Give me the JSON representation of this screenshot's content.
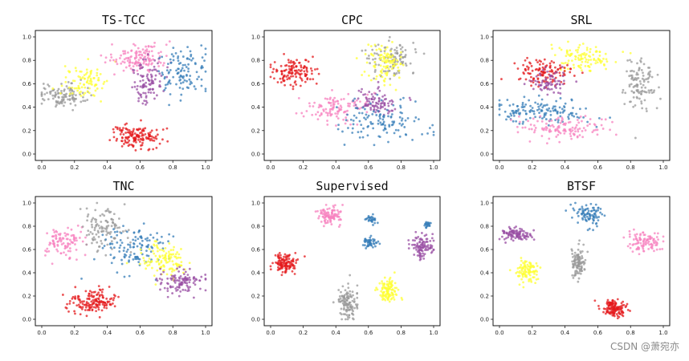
{
  "figure": {
    "watermark": "CSDN @萧宛亦"
  },
  "colors": {
    "red": "#e41a1c",
    "blue": "#377eb8",
    "purple": "#984ea3",
    "yellow": "#ffff33",
    "pink": "#f781bf",
    "gray": "#999999"
  },
  "chart_data": [
    {
      "type": "scatter",
      "title": "TS-TCC",
      "xlim": [
        0,
        1
      ],
      "ylim": [
        0,
        1
      ],
      "xticks": [
        "0.0",
        "0.2",
        "0.4",
        "0.6",
        "0.8",
        "1.0"
      ],
      "yticks": [
        "0.0",
        "0.2",
        "0.4",
        "0.6",
        "0.8",
        "1.0"
      ],
      "clusters": [
        {
          "color": "gray",
          "cx": 0.12,
          "cy": 0.5,
          "sx": 0.07,
          "sy": 0.05,
          "n": 110
        },
        {
          "color": "yellow",
          "cx": 0.26,
          "cy": 0.62,
          "sx": 0.07,
          "sy": 0.07,
          "n": 90
        },
        {
          "color": "pink",
          "cx": 0.6,
          "cy": 0.82,
          "sx": 0.09,
          "sy": 0.06,
          "n": 130
        },
        {
          "color": "purple",
          "cx": 0.64,
          "cy": 0.62,
          "sx": 0.05,
          "sy": 0.09,
          "n": 100
        },
        {
          "color": "blue",
          "cx": 0.86,
          "cy": 0.72,
          "sx": 0.07,
          "sy": 0.1,
          "n": 110
        },
        {
          "color": "red",
          "cx": 0.57,
          "cy": 0.15,
          "sx": 0.08,
          "sy": 0.05,
          "n": 150
        }
      ]
    },
    {
      "type": "scatter",
      "title": "CPC",
      "xlim": [
        0,
        1
      ],
      "ylim": [
        0,
        1
      ],
      "xticks": [
        "0.0",
        "0.2",
        "0.4",
        "0.6",
        "0.8",
        "1.0"
      ],
      "yticks": [
        "0.0",
        "0.2",
        "0.4",
        "0.6",
        "0.8",
        "1.0"
      ],
      "clusters": [
        {
          "color": "red",
          "cx": 0.15,
          "cy": 0.7,
          "sx": 0.07,
          "sy": 0.06,
          "n": 130
        },
        {
          "color": "gray",
          "cx": 0.74,
          "cy": 0.82,
          "sx": 0.08,
          "sy": 0.07,
          "n": 110
        },
        {
          "color": "yellow",
          "cx": 0.7,
          "cy": 0.78,
          "sx": 0.06,
          "sy": 0.08,
          "n": 100
        },
        {
          "color": "pink",
          "cx": 0.4,
          "cy": 0.4,
          "sx": 0.1,
          "sy": 0.06,
          "n": 110
        },
        {
          "color": "purple",
          "cx": 0.66,
          "cy": 0.42,
          "sx": 0.07,
          "sy": 0.06,
          "n": 90
        },
        {
          "color": "blue",
          "cx": 0.68,
          "cy": 0.28,
          "sx": 0.14,
          "sy": 0.09,
          "n": 120
        }
      ]
    },
    {
      "type": "scatter",
      "title": "SRL",
      "xlim": [
        0,
        1
      ],
      "ylim": [
        0,
        1
      ],
      "xticks": [
        "0.0",
        "0.2",
        "0.4",
        "0.6",
        "0.8",
        "1.0"
      ],
      "yticks": [
        "0.0",
        "0.2",
        "0.4",
        "0.6",
        "0.8",
        "1.0"
      ],
      "clusters": [
        {
          "color": "yellow",
          "cx": 0.53,
          "cy": 0.82,
          "sx": 0.09,
          "sy": 0.06,
          "n": 110
        },
        {
          "color": "red",
          "cx": 0.27,
          "cy": 0.7,
          "sx": 0.09,
          "sy": 0.06,
          "n": 120
        },
        {
          "color": "purple",
          "cx": 0.3,
          "cy": 0.63,
          "sx": 0.06,
          "sy": 0.05,
          "n": 70
        },
        {
          "color": "gray",
          "cx": 0.86,
          "cy": 0.58,
          "sx": 0.05,
          "sy": 0.11,
          "n": 110
        },
        {
          "color": "blue",
          "cx": 0.26,
          "cy": 0.36,
          "sx": 0.15,
          "sy": 0.05,
          "n": 140
        },
        {
          "color": "pink",
          "cx": 0.37,
          "cy": 0.22,
          "sx": 0.13,
          "sy": 0.05,
          "n": 120
        }
      ]
    },
    {
      "type": "scatter",
      "title": "TNC",
      "xlim": [
        0,
        1
      ],
      "ylim": [
        0,
        1
      ],
      "xticks": [
        "0.0",
        "0.2",
        "0.4",
        "0.6",
        "0.8",
        "1.0"
      ],
      "yticks": [
        "0.0",
        "0.2",
        "0.4",
        "0.6",
        "0.8",
        "1.0"
      ],
      "clusters": [
        {
          "color": "pink",
          "cx": 0.13,
          "cy": 0.65,
          "sx": 0.06,
          "sy": 0.07,
          "n": 100
        },
        {
          "color": "gray",
          "cx": 0.38,
          "cy": 0.78,
          "sx": 0.07,
          "sy": 0.1,
          "n": 110
        },
        {
          "color": "blue",
          "cx": 0.56,
          "cy": 0.62,
          "sx": 0.1,
          "sy": 0.1,
          "n": 120
        },
        {
          "color": "yellow",
          "cx": 0.75,
          "cy": 0.5,
          "sx": 0.07,
          "sy": 0.07,
          "n": 120
        },
        {
          "color": "purple",
          "cx": 0.85,
          "cy": 0.32,
          "sx": 0.07,
          "sy": 0.05,
          "n": 110
        },
        {
          "color": "red",
          "cx": 0.31,
          "cy": 0.15,
          "sx": 0.08,
          "sy": 0.05,
          "n": 150
        }
      ]
    },
    {
      "type": "scatter",
      "title": "Supervised",
      "xlim": [
        0,
        1
      ],
      "ylim": [
        0,
        1
      ],
      "xticks": [
        "0.0",
        "0.2",
        "0.4",
        "0.6",
        "0.8",
        "1.0"
      ],
      "yticks": [
        "0.0",
        "0.2",
        "0.4",
        "0.6",
        "0.8",
        "1.0"
      ],
      "clusters": [
        {
          "color": "pink",
          "cx": 0.37,
          "cy": 0.9,
          "sx": 0.04,
          "sy": 0.04,
          "n": 100
        },
        {
          "color": "blue",
          "cx": 0.62,
          "cy": 0.86,
          "sx": 0.015,
          "sy": 0.02,
          "n": 30
        },
        {
          "color": "blue",
          "cx": 0.61,
          "cy": 0.66,
          "sx": 0.025,
          "sy": 0.025,
          "n": 50
        },
        {
          "color": "blue",
          "cx": 0.96,
          "cy": 0.81,
          "sx": 0.01,
          "sy": 0.015,
          "n": 20
        },
        {
          "color": "purple",
          "cx": 0.93,
          "cy": 0.62,
          "sx": 0.035,
          "sy": 0.05,
          "n": 100
        },
        {
          "color": "red",
          "cx": 0.09,
          "cy": 0.48,
          "sx": 0.04,
          "sy": 0.04,
          "n": 120
        },
        {
          "color": "yellow",
          "cx": 0.72,
          "cy": 0.25,
          "sx": 0.035,
          "sy": 0.05,
          "n": 110
        },
        {
          "color": "gray",
          "cx": 0.47,
          "cy": 0.14,
          "sx": 0.03,
          "sy": 0.07,
          "n": 120
        }
      ]
    },
    {
      "type": "scatter",
      "title": "BTSF",
      "xlim": [
        0,
        1
      ],
      "ylim": [
        0,
        1
      ],
      "xticks": [
        "0.0",
        "0.2",
        "0.4",
        "0.6",
        "0.8",
        "1.0"
      ],
      "yticks": [
        "0.0",
        "0.2",
        "0.4",
        "0.6",
        "0.8",
        "1.0"
      ],
      "clusters": [
        {
          "color": "blue",
          "cx": 0.54,
          "cy": 0.9,
          "sx": 0.05,
          "sy": 0.05,
          "n": 90
        },
        {
          "color": "purple",
          "cx": 0.1,
          "cy": 0.73,
          "sx": 0.05,
          "sy": 0.03,
          "n": 100
        },
        {
          "color": "pink",
          "cx": 0.89,
          "cy": 0.66,
          "sx": 0.05,
          "sy": 0.05,
          "n": 100
        },
        {
          "color": "gray",
          "cx": 0.48,
          "cy": 0.48,
          "sx": 0.025,
          "sy": 0.07,
          "n": 110
        },
        {
          "color": "yellow",
          "cx": 0.17,
          "cy": 0.41,
          "sx": 0.035,
          "sy": 0.05,
          "n": 100
        },
        {
          "color": "red",
          "cx": 0.7,
          "cy": 0.1,
          "sx": 0.04,
          "sy": 0.035,
          "n": 130
        }
      ]
    }
  ]
}
